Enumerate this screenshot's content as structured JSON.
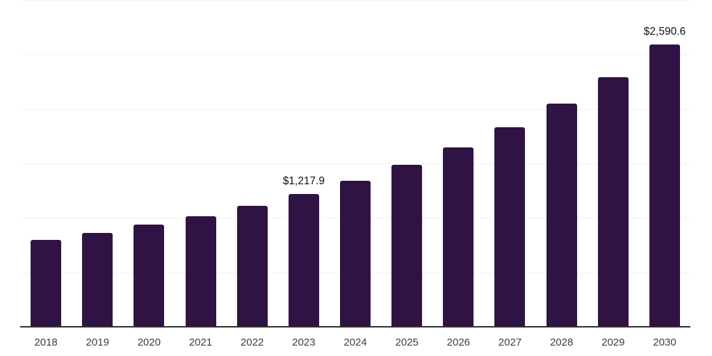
{
  "chart_data": {
    "type": "bar",
    "title": "",
    "xlabel": "",
    "ylabel": "",
    "categories": [
      "2018",
      "2019",
      "2020",
      "2021",
      "2022",
      "2023",
      "2024",
      "2025",
      "2026",
      "2027",
      "2028",
      "2029",
      "2030"
    ],
    "values": [
      800,
      860,
      940,
      1015,
      1110,
      1217.9,
      1340,
      1485,
      1650,
      1830,
      2050,
      2290,
      2590.6
    ],
    "data_labels": [
      null,
      null,
      null,
      null,
      null,
      "$1,217.9",
      null,
      null,
      null,
      null,
      null,
      null,
      "$2,590.6"
    ],
    "ylim": [
      0,
      3000
    ],
    "gridline_step": 500,
    "grid": "horizontal",
    "legend": "none",
    "colors": {
      "bar": "#301345",
      "axis_line": "#2e2e30",
      "gridline": "#f2f2f4",
      "tick_label": "#3d3d3d",
      "data_label": "#111111",
      "background": "#ffffff"
    }
  }
}
